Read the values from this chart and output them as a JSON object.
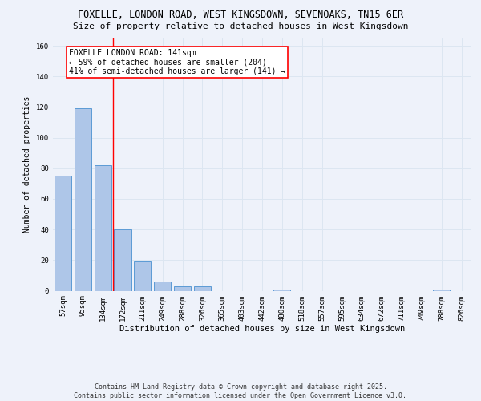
{
  "title1": "FOXELLE, LONDON ROAD, WEST KINGSDOWN, SEVENOAKS, TN15 6ER",
  "title2": "Size of property relative to detached houses in West Kingsdown",
  "xlabel": "Distribution of detached houses by size in West Kingsdown",
  "ylabel": "Number of detached properties",
  "categories": [
    "57sqm",
    "95sqm",
    "134sqm",
    "172sqm",
    "211sqm",
    "249sqm",
    "288sqm",
    "326sqm",
    "365sqm",
    "403sqm",
    "442sqm",
    "480sqm",
    "518sqm",
    "557sqm",
    "595sqm",
    "634sqm",
    "672sqm",
    "711sqm",
    "749sqm",
    "788sqm",
    "826sqm"
  ],
  "values": [
    75,
    119,
    82,
    40,
    19,
    6,
    3,
    3,
    0,
    0,
    0,
    1,
    0,
    0,
    0,
    0,
    0,
    0,
    0,
    1,
    0
  ],
  "bar_color": "#aec6e8",
  "bar_edge_color": "#5b9bd5",
  "grid_color": "#dce6f1",
  "background_color": "#eef2fa",
  "vline_x": 2.5,
  "vline_color": "red",
  "annotation_text": "FOXELLE LONDON ROAD: 141sqm\n← 59% of detached houses are smaller (204)\n41% of semi-detached houses are larger (141) →",
  "annotation_box_color": "white",
  "annotation_box_edge": "red",
  "ylim": [
    0,
    165
  ],
  "yticks": [
    0,
    20,
    40,
    60,
    80,
    100,
    120,
    140,
    160
  ],
  "footer": "Contains HM Land Registry data © Crown copyright and database right 2025.\nContains public sector information licensed under the Open Government Licence v3.0.",
  "title1_fontsize": 8.5,
  "title2_fontsize": 8,
  "xlabel_fontsize": 7.5,
  "ylabel_fontsize": 7,
  "tick_fontsize": 6.5,
  "annotation_fontsize": 7,
  "footer_fontsize": 6
}
